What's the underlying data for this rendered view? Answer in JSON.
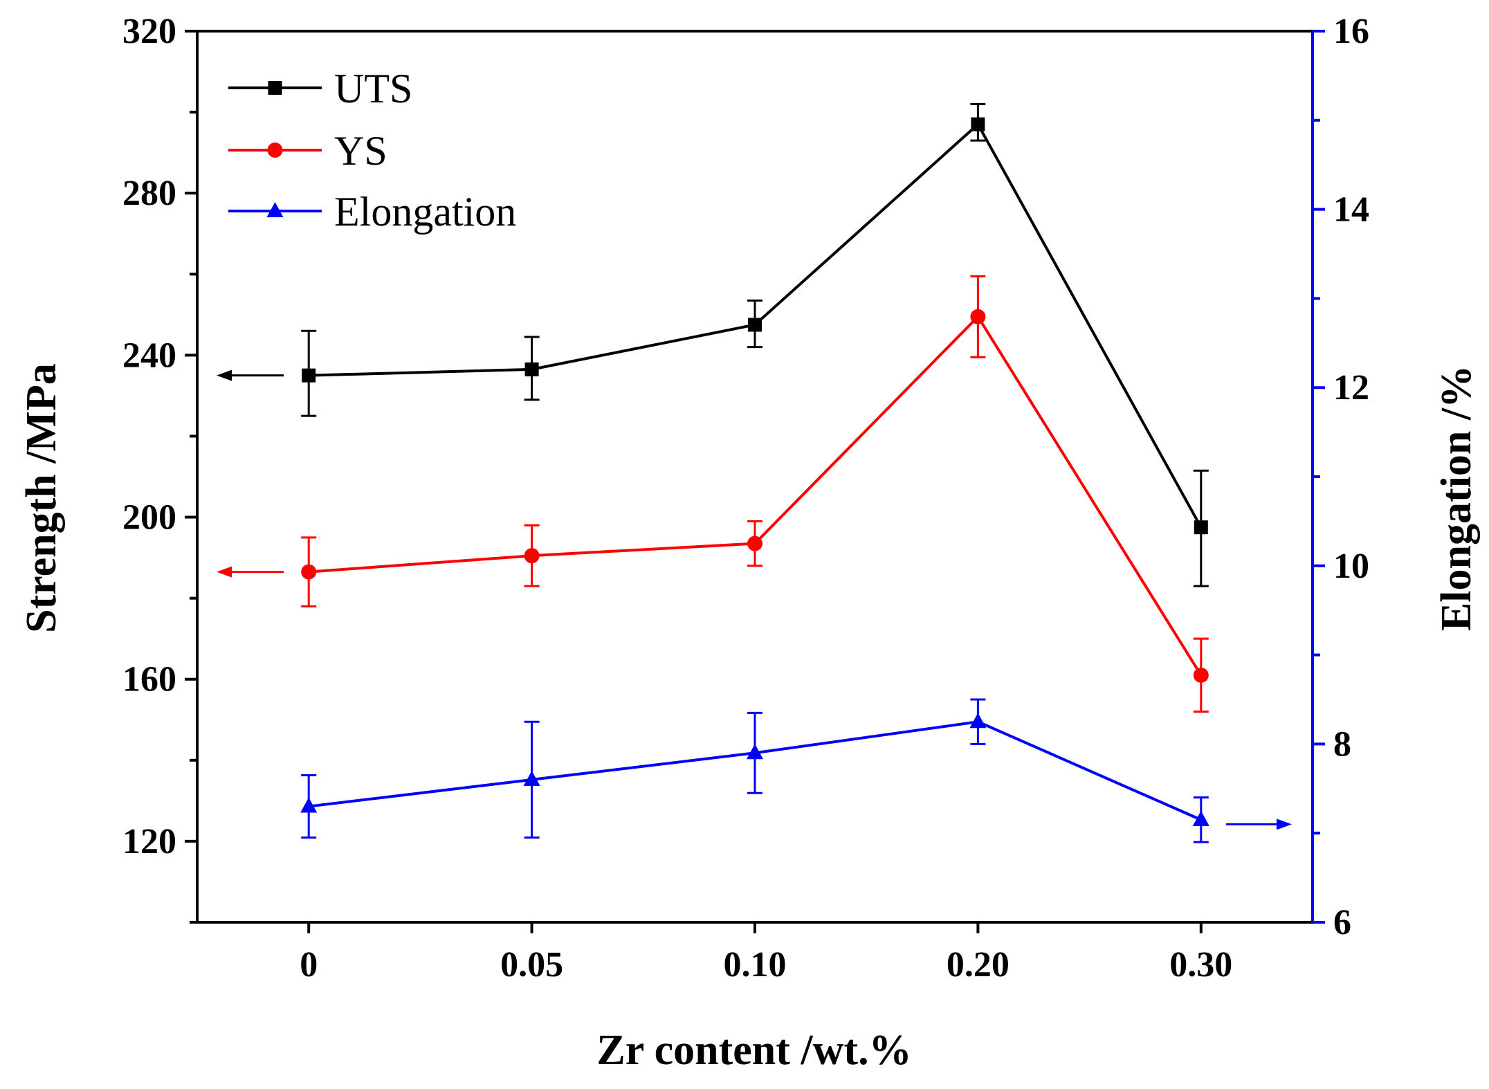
{
  "chart_data": {
    "type": "line",
    "title": "",
    "xlabel": "Zr content /wt.%",
    "ylabel_left": "Strength /MPa",
    "ylabel_right": "Elongation /%",
    "categories": [
      "0",
      "0.05",
      "0.10",
      "0.20",
      "0.30"
    ],
    "x": [
      0,
      1,
      2,
      3,
      4
    ],
    "xlim": [
      -0.5,
      4.5
    ],
    "ylim_left": [
      100,
      320
    ],
    "yticks_left": [
      120,
      160,
      200,
      240,
      280,
      320
    ],
    "ylim_right": [
      6,
      16
    ],
    "yticks_right": [
      6,
      8,
      10,
      12,
      14,
      16
    ],
    "legend_position": "top-left",
    "grid": false,
    "series": [
      {
        "name": "UTS",
        "axis": "left",
        "color": "#000000",
        "marker": "square",
        "values": [
          235,
          236.5,
          247.5,
          297,
          197.5
        ],
        "err_low": [
          10,
          7.5,
          5.5,
          4,
          14.5
        ],
        "err_high": [
          11,
          8,
          6,
          5,
          14
        ]
      },
      {
        "name": "YS",
        "axis": "left",
        "color": "#ff0000",
        "marker": "circle",
        "values": [
          186.5,
          190.5,
          193.5,
          249.5,
          161
        ],
        "err_low": [
          8.5,
          7.5,
          5.5,
          10,
          9
        ],
        "err_high": [
          8.5,
          7.5,
          5.5,
          10,
          9
        ]
      },
      {
        "name": "Elongation",
        "axis": "right",
        "color": "#0000ff",
        "marker": "triangle",
        "values": [
          7.3,
          7.6,
          7.9,
          8.25,
          7.15
        ],
        "err_low": [
          0.35,
          0.65,
          0.45,
          0.25,
          0.25
        ],
        "err_high": [
          0.35,
          0.65,
          0.45,
          0.25,
          0.25
        ]
      }
    ],
    "annotations": [
      {
        "type": "arrow",
        "series": "UTS",
        "direction": "left",
        "axis": "left",
        "y": 235
      },
      {
        "type": "arrow",
        "series": "YS",
        "direction": "left",
        "axis": "left",
        "y": 186.5
      },
      {
        "type": "arrow",
        "series": "Elongation",
        "direction": "right",
        "axis": "right",
        "y": 7.1
      }
    ],
    "colors": {
      "left_axis": "#000000",
      "right_axis": "#0000ff"
    }
  }
}
